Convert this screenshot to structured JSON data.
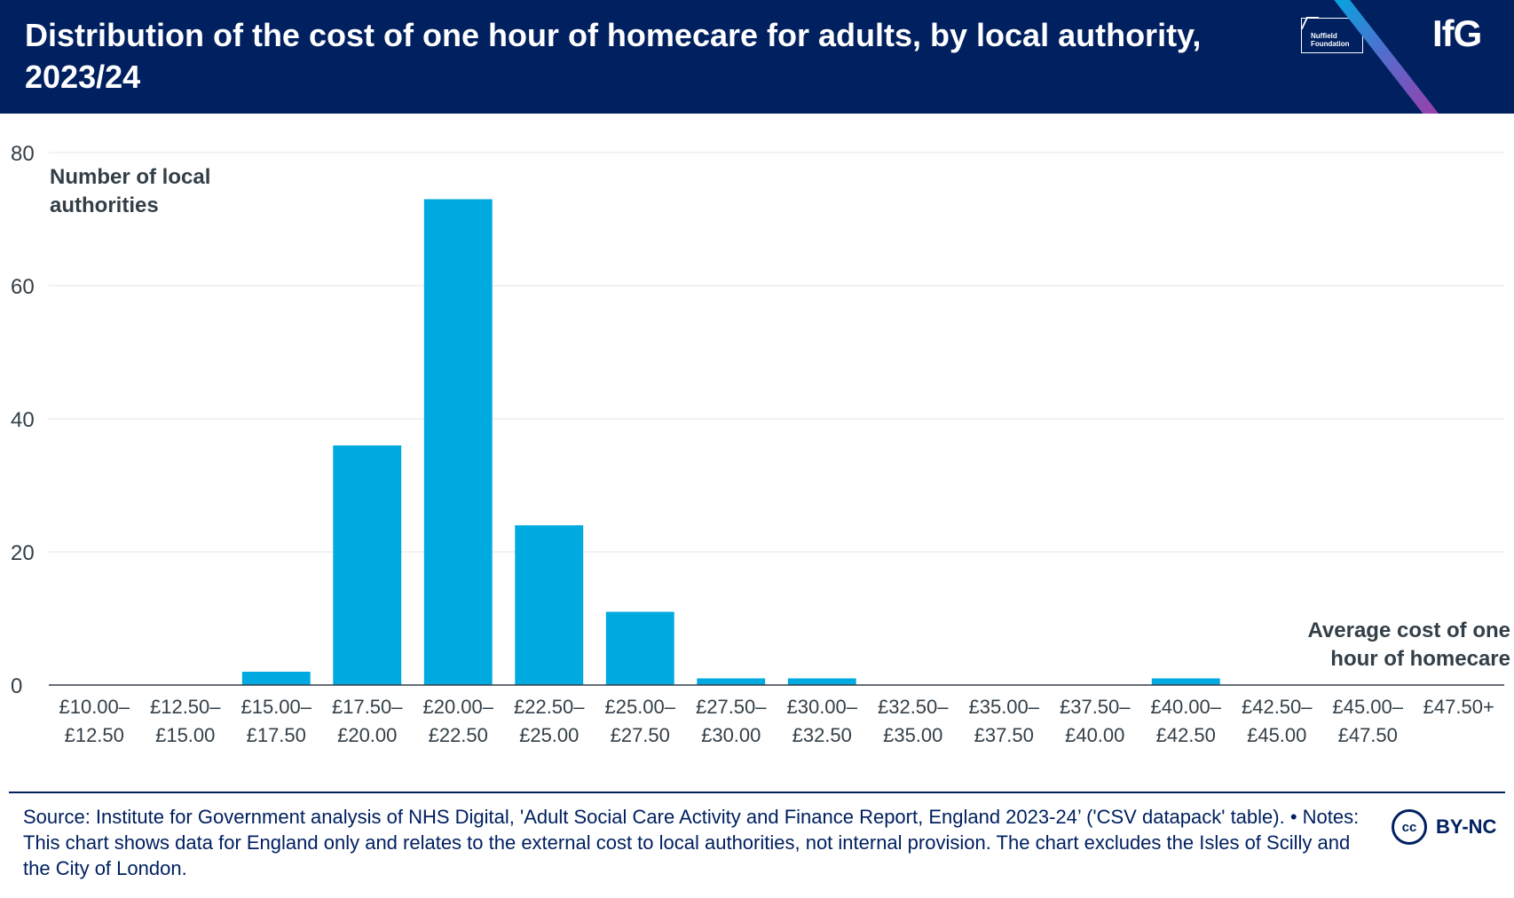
{
  "header": {
    "title": "Distribution of the cost of one hour of homecare for adults, by local authority, 2023/24",
    "partner_logo_text": "Nuffield Foundation",
    "brand": "IfG"
  },
  "chart_data": {
    "type": "bar",
    "title": "Distribution of the cost of one hour of homecare for adults, by local authority, 2023/24",
    "ylabel": "Number of local authorities",
    "xlabel": "Average cost of one hour of homecare",
    "ylim": [
      0,
      80
    ],
    "yticks": [
      0,
      20,
      40,
      60,
      80
    ],
    "grid": true,
    "bar_color": "#00a9e0",
    "categories": [
      [
        "£10.00–",
        "£12.50"
      ],
      [
        "£12.50–",
        "£15.00"
      ],
      [
        "£15.00–",
        "£17.50"
      ],
      [
        "£17.50–",
        "£20.00"
      ],
      [
        "£20.00–",
        "£22.50"
      ],
      [
        "£22.50–",
        "£25.00"
      ],
      [
        "£25.00–",
        "£27.50"
      ],
      [
        "£27.50–",
        "£30.00"
      ],
      [
        "£30.00–",
        "£32.50"
      ],
      [
        "£32.50–",
        "£35.00"
      ],
      [
        "£35.00–",
        "£37.50"
      ],
      [
        "£37.50–",
        "£40.00"
      ],
      [
        "£40.00–",
        "£42.50"
      ],
      [
        "£42.50–",
        "£45.00"
      ],
      [
        "£45.00–",
        "£47.50"
      ],
      [
        "£47.50+",
        ""
      ]
    ],
    "values": [
      0,
      0,
      2,
      36,
      73,
      24,
      11,
      1,
      1,
      0,
      0,
      0,
      1,
      0,
      0,
      0
    ]
  },
  "footer": {
    "source": "Source: Institute for Government analysis of NHS Digital, 'Adult Social Care Activity and Finance Report, England 2023-24’ ('CSV datapack' table). • Notes: This chart shows data for England only and relates to the external cost to local authorities, not internal provision. The chart excludes the Isles of Scilly and the City of London.",
    "license_icon": "cc",
    "license": "BY-NC"
  }
}
